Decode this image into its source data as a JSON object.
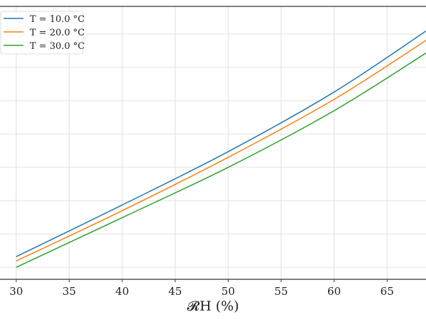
{
  "chart_data": {
    "type": "line",
    "title": "",
    "xlabel": "𝓡H (%)",
    "xlabel_main": "𝓡",
    "xlabel_sub": "H",
    "xlabel_unit": "(%)",
    "ylabel": "",
    "xlim": [
      28.47,
      68.67
    ],
    "ylim": [
      -0.36,
      7.83
    ],
    "x_ticks": [
      30,
      35,
      40,
      45,
      50,
      55,
      60,
      65
    ],
    "x_tick_labels": [
      "30",
      "35",
      "40",
      "45",
      "50",
      "55",
      "60",
      "65"
    ],
    "y_gridlines": [
      0,
      1,
      2,
      3,
      4,
      5,
      6,
      7
    ],
    "grid": true,
    "legend_placement": "top-left",
    "series": [
      {
        "name": "T = 10.0 °C",
        "color": "#1f77b4",
        "x": [
          30,
          40,
          50,
          60,
          68.67
        ],
        "y": [
          0.32,
          1.87,
          3.47,
          5.26,
          7.09
        ]
      },
      {
        "name": "T = 20.0 °C",
        "color": "#ff7f0e",
        "x": [
          30,
          40,
          50,
          60,
          68.67
        ],
        "y": [
          0.19,
          1.7,
          3.3,
          5.04,
          6.81
        ]
      },
      {
        "name": "T = 30.0 °C",
        "color": "#2ca02c",
        "x": [
          30,
          40,
          50,
          60,
          68.67
        ],
        "y": [
          0.0,
          1.49,
          3.0,
          4.7,
          6.43
        ]
      }
    ]
  }
}
